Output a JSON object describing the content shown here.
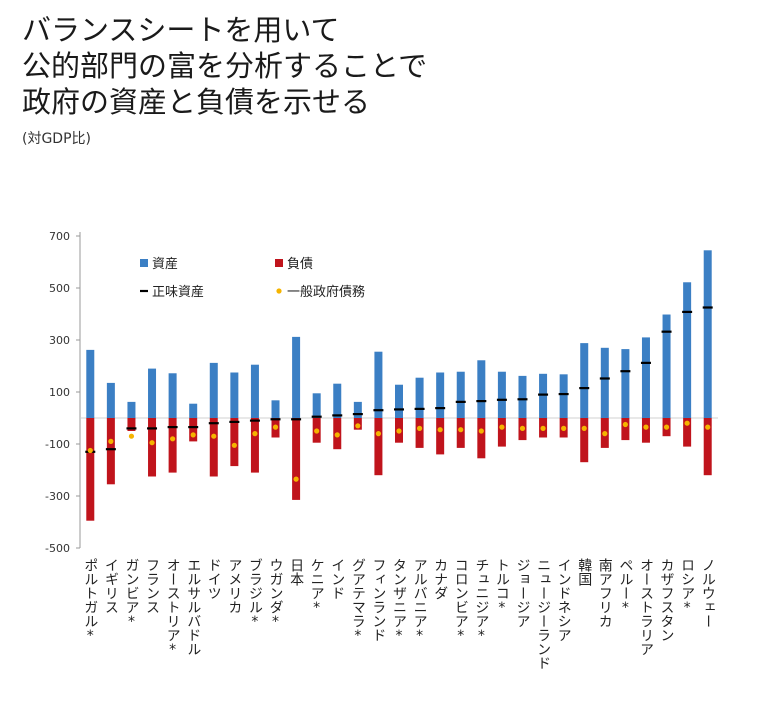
{
  "title_lines": [
    "バランスシートを用いて",
    "公的部門の富を分析することで",
    "政府の資産と負債を示せる"
  ],
  "subtitle": "(対GDP比)",
  "chart_data": {
    "type": "bar",
    "ylim": [
      -500,
      700
    ],
    "yticks": [
      700,
      500,
      300,
      100,
      -100,
      -300,
      -500
    ],
    "grid": false,
    "legend_position": "top-left",
    "categories": [
      "ポルトガル*",
      "イギリス",
      "ガンビア*",
      "フランス",
      "オーストリア*",
      "エルサルバドル",
      "ドイツ",
      "アメリカ",
      "ブラジル*",
      "ウガンダ*",
      "日本",
      "ケニア*",
      "インド",
      "グアテマラ*",
      "フィンランド",
      "タンザニア*",
      "アルバニア*",
      "カナダ",
      "コロンビア*",
      "チュニジア*",
      "トルコ*",
      "ジョージア",
      "ニュージーランド",
      "インドネシア",
      "韓国",
      "南アフリカ",
      "ペルー*",
      "オーストラリア",
      "カザフスタン",
      "ロシア*",
      "ノルウェー"
    ],
    "series": [
      {
        "name": "資産",
        "color": "#3b7fc4",
        "values": [
          262,
          135,
          62,
          190,
          172,
          55,
          212,
          175,
          205,
          68,
          312,
          95,
          132,
          62,
          255,
          128,
          155,
          175,
          178,
          222,
          178,
          162,
          170,
          168,
          288,
          270,
          265,
          310,
          398,
          522,
          645
        ]
      },
      {
        "name": "負債",
        "color": "#c0141c",
        "values": [
          -395,
          -255,
          -50,
          -225,
          -210,
          -90,
          -225,
          -185,
          -210,
          -75,
          -315,
          -95,
          -120,
          -45,
          -220,
          -95,
          -115,
          -140,
          -115,
          -155,
          -110,
          -85,
          -75,
          -75,
          -170,
          -115,
          -85,
          -95,
          -70,
          -110,
          -220
        ]
      },
      {
        "name": "正味資産",
        "color": "#000000",
        "values": [
          -130,
          -120,
          -40,
          -40,
          -35,
          -35,
          -20,
          -15,
          -10,
          -5,
          -5,
          5,
          10,
          15,
          30,
          33,
          35,
          38,
          62,
          65,
          70,
          72,
          90,
          92,
          115,
          152,
          180,
          212,
          332,
          408,
          425
        ]
      },
      {
        "name": "一般政府債務",
        "color": "#f5b400",
        "values": [
          -125,
          -90,
          -70,
          -95,
          -80,
          -65,
          -70,
          -105,
          -60,
          -35,
          -235,
          -50,
          -65,
          -30,
          -60,
          -50,
          -40,
          -45,
          -45,
          -50,
          -35,
          -40,
          -40,
          -40,
          -40,
          -60,
          -25,
          -35,
          -35,
          -20,
          -35
        ]
      }
    ]
  }
}
